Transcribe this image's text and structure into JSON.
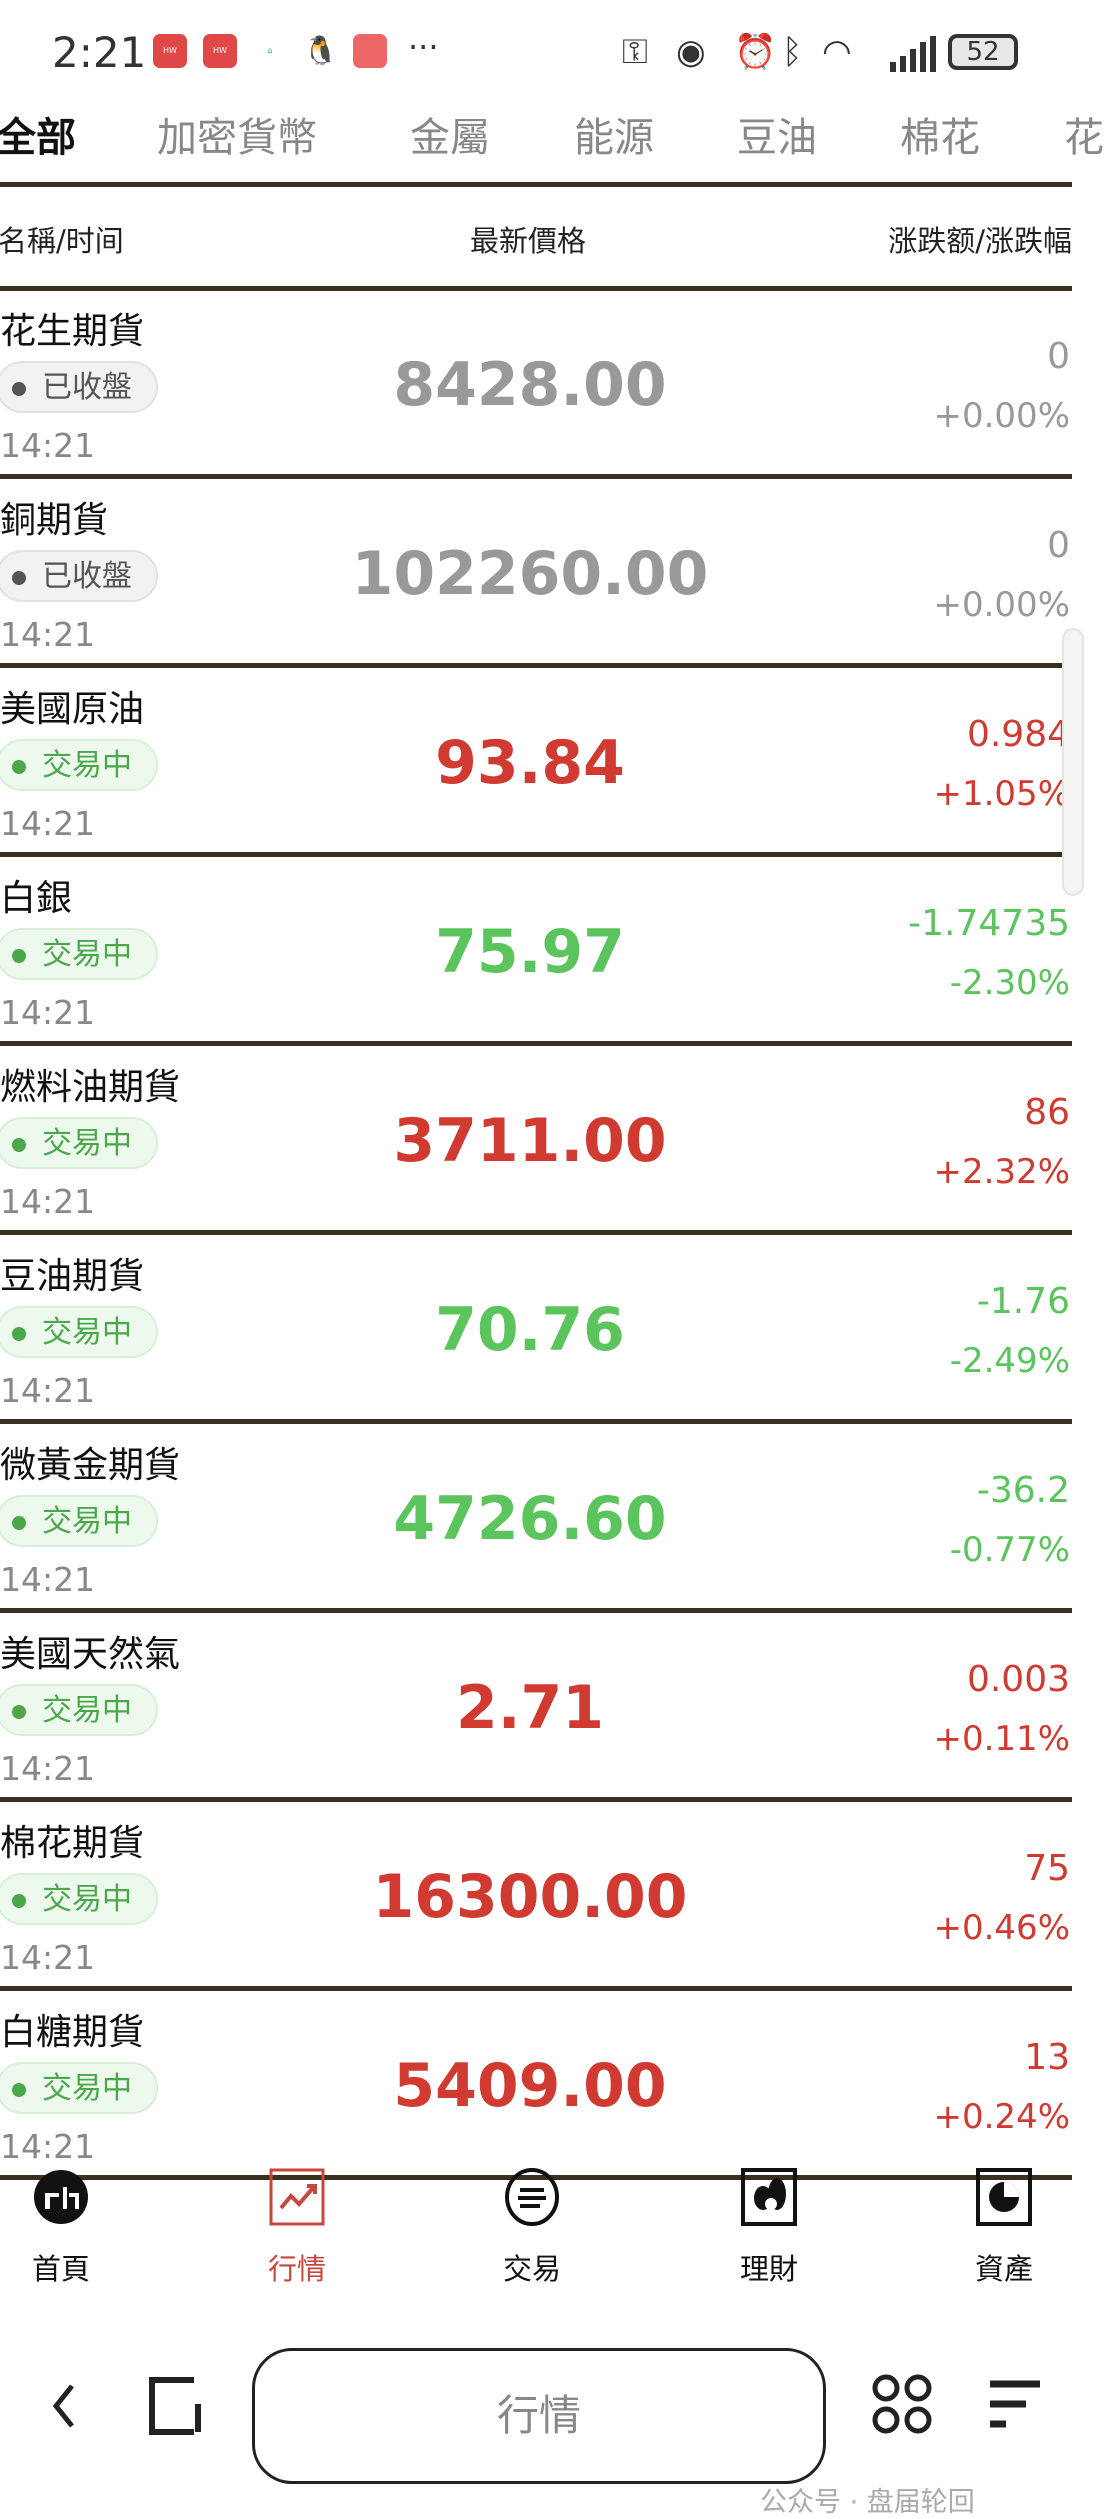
{
  "status_bar": {
    "time": "2:21",
    "more": "···",
    "battery": "52",
    "notification_icons": [
      "huawei-app-icon",
      "huawei-app-icon",
      "vr-home-icon",
      "qq-penguin-icon",
      "app-icon"
    ],
    "system_icons": [
      "key-icon",
      "eye-icon",
      "alarm-icon",
      "bluetooth-icon",
      "wifi-icon",
      "signal-icon"
    ]
  },
  "tabs": [
    {
      "label": "全部",
      "active": true
    },
    {
      "label": "加密貨幣"
    },
    {
      "label": "金屬"
    },
    {
      "label": "能源"
    },
    {
      "label": "豆油"
    },
    {
      "label": "棉花"
    },
    {
      "label": "花"
    }
  ],
  "columns": {
    "name": "名稱/时间",
    "price": "最新價格",
    "change": "涨跌额/涨跌幅"
  },
  "rows": [
    {
      "name": "花生期貨",
      "status": "已收盤",
      "status_type": "closed",
      "time": "14:21",
      "price": "8428.00",
      "change": "0",
      "pct": "+0.00%",
      "trend": "flat"
    },
    {
      "name": "銅期貨",
      "status": "已收盤",
      "status_type": "closed",
      "time": "14:21",
      "price": "102260.00",
      "change": "0",
      "pct": "+0.00%",
      "trend": "flat"
    },
    {
      "name": "美國原油",
      "status": "交易中",
      "status_type": "open",
      "time": "14:21",
      "price": "93.84",
      "change": "0.984",
      "pct": "+1.05%",
      "trend": "up"
    },
    {
      "name": "白銀",
      "status": "交易中",
      "status_type": "open",
      "time": "14:21",
      "price": "75.97",
      "change": "-1.74735",
      "pct": "-2.30%",
      "trend": "down"
    },
    {
      "name": "燃料油期貨",
      "status": "交易中",
      "status_type": "open",
      "time": "14:21",
      "price": "3711.00",
      "change": "86",
      "pct": "+2.32%",
      "trend": "up"
    },
    {
      "name": "豆油期貨",
      "status": "交易中",
      "status_type": "open",
      "time": "14:21",
      "price": "70.76",
      "change": "-1.76",
      "pct": "-2.49%",
      "trend": "down"
    },
    {
      "name": "微黃金期貨",
      "status": "交易中",
      "status_type": "open",
      "time": "14:21",
      "price": "4726.60",
      "change": "-36.2",
      "pct": "-0.77%",
      "trend": "down"
    },
    {
      "name": "美國天然氣",
      "status": "交易中",
      "status_type": "open",
      "time": "14:21",
      "price": "2.71",
      "change": "0.003",
      "pct": "+0.11%",
      "trend": "up"
    },
    {
      "name": "棉花期貨",
      "status": "交易中",
      "status_type": "open",
      "time": "14:21",
      "price": "16300.00",
      "change": "75",
      "pct": "+0.46%",
      "trend": "up"
    },
    {
      "name": "白糖期貨",
      "status": "交易中",
      "status_type": "open",
      "time": "14:21",
      "price": "5409.00",
      "change": "13",
      "pct": "+0.24%",
      "trend": "up"
    }
  ],
  "bottom_nav": [
    {
      "label": "首頁",
      "icon": "home-icon"
    },
    {
      "label": "行情",
      "icon": "market-chart-icon",
      "active": true
    },
    {
      "label": "交易",
      "icon": "trade-icon"
    },
    {
      "label": "理財",
      "icon": "wealth-icon"
    },
    {
      "label": "資產",
      "icon": "assets-pie-icon"
    }
  ],
  "browser": {
    "title": "行情"
  },
  "watermark": "公众号 · 盘届轮回",
  "colors": {
    "up": "#d03a30",
    "down": "#5cc45c",
    "flat": "#999999",
    "accent": "#c9463c",
    "divider": "#3a3020"
  }
}
